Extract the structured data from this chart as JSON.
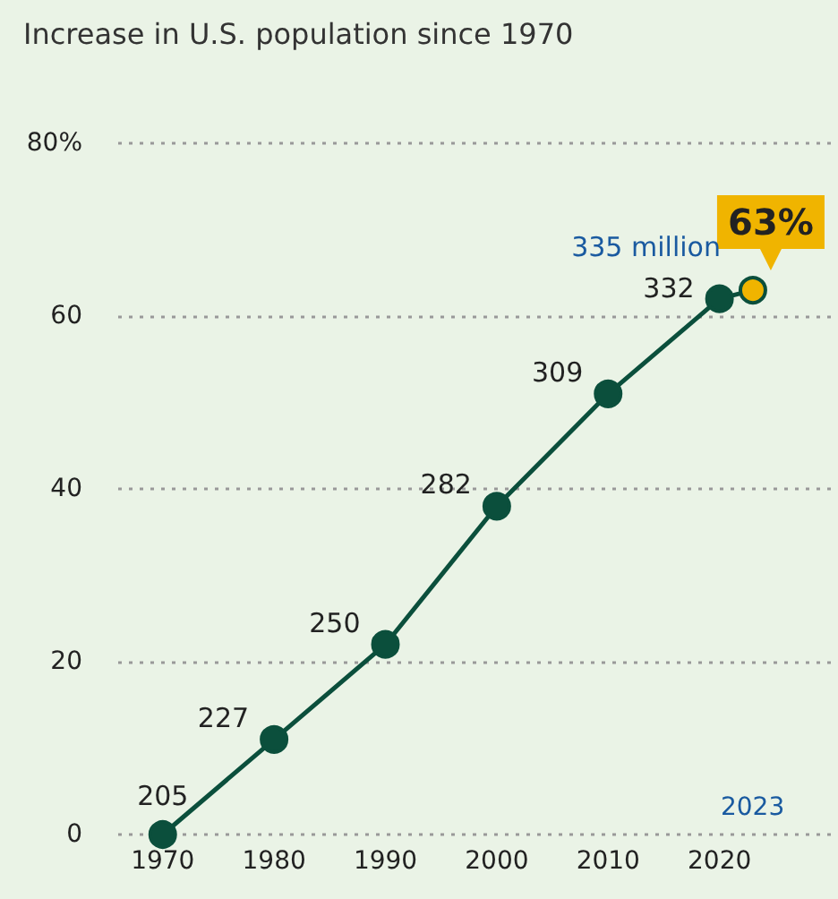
{
  "chart_data": {
    "type": "line",
    "title": "Increase in U.S. population since 1970",
    "x": [
      1970,
      1980,
      1990,
      2000,
      2010,
      2020,
      2023
    ],
    "series": [
      {
        "color": "#0b4f3c",
        "colors": [
          "#0b4f3c",
          "#0b4f3c",
          "#0b4f3c",
          "#0b4f3c",
          "#0b4f3c",
          "#0b4f3c",
          "#f0b400"
        ],
        "values": [
          0,
          11,
          22,
          38,
          51,
          62,
          63
        ]
      }
    ],
    "xlim": [
      1966,
      2030
    ],
    "xticks": [
      1970,
      1980,
      1990,
      2000,
      2010,
      2020
    ],
    "ylim": [
      0,
      80
    ],
    "yticks": [
      0,
      20,
      40,
      60,
      {
        "value": 80,
        "label": "80%"
      }
    ],
    "annotations": [
      {
        "text": "205",
        "x": 1970,
        "y": 0
      },
      {
        "text": "227",
        "x": 1980,
        "y": 11
      },
      {
        "text": "250",
        "x": 1990,
        "y": 22
      },
      {
        "text": "282",
        "x": 2000,
        "y": 38
      },
      {
        "text": "309",
        "x": 2010,
        "y": 51
      },
      {
        "text": "332",
        "x": 2020,
        "y": 62
      },
      {
        "text": "335 million",
        "x": 2023,
        "y": 63
      },
      "2023",
      {
        "text": "63%",
        "x": 2023,
        "y": 63
      }
    ],
    "grid": "y",
    "marker": "circle",
    "line_style": "solid"
  }
}
